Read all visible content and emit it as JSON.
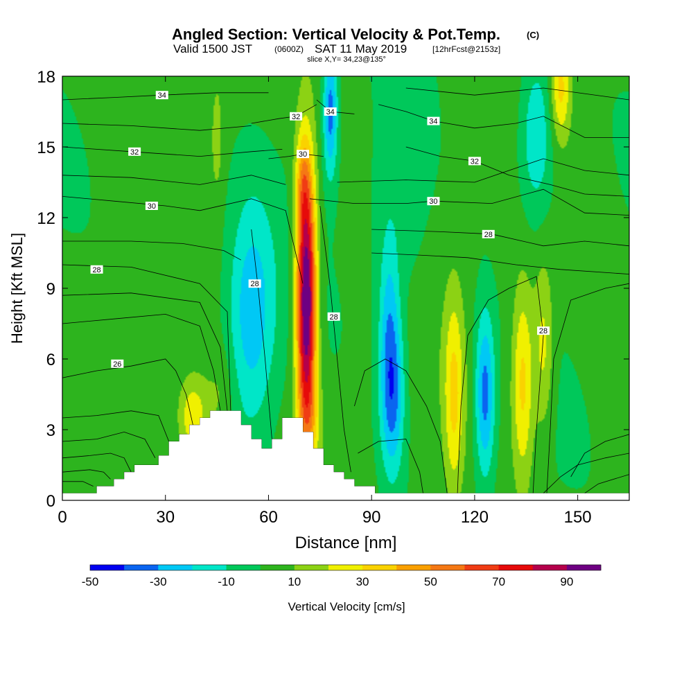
{
  "chart_data": {
    "type": "heatmap",
    "title": "Angled Section: Vertical Velocity & Pot.Temp.",
    "title_suffix": "(C)",
    "subtitle_main": "Valid 1500 JST",
    "subtitle_utc": "(0600Z)",
    "subtitle_date": "SAT 11 May 2019",
    "subtitle_fcst": "[12hrFcst@2153z]",
    "slice": "slice X,Y= 34,23@135°",
    "xlabel": "Distance [nm]",
    "ylabel": "Height [Kft MSL]",
    "xlim": [
      0,
      165
    ],
    "ylim": [
      0,
      18
    ],
    "xticks": [
      0,
      30,
      60,
      90,
      120,
      150
    ],
    "yticks": [
      0,
      3,
      6,
      9,
      12,
      15,
      18
    ],
    "colorbar": {
      "label": "Vertical Velocity [cm/s]",
      "ticks": [
        -50,
        -30,
        -10,
        10,
        30,
        50,
        70,
        90
      ],
      "levels": [
        -50,
        -40,
        -30,
        -20,
        -10,
        0,
        10,
        20,
        30,
        40,
        50,
        60,
        70,
        80,
        90,
        100
      ],
      "colors": [
        "#0000f0",
        "#0a64f0",
        "#00c8f5",
        "#00e6c8",
        "#00c85a",
        "#2db41e",
        "#8cd214",
        "#f0f000",
        "#fad200",
        "#faa000",
        "#f57814",
        "#f03c14",
        "#e60a0a",
        "#b4004b",
        "#6e0082"
      ]
    },
    "velocity_features": [
      {
        "x": 71,
        "y": 8.5,
        "sx": 2.0,
        "sy": 3.8,
        "w": 105,
        "note": "main updraft core"
      },
      {
        "x": 70,
        "y": 13.5,
        "sx": 1.6,
        "sy": 1.5,
        "w": 22
      },
      {
        "x": 72,
        "y": 3.5,
        "sx": 2.5,
        "sy": 1.5,
        "w": 18
      },
      {
        "x": 55,
        "y": 8.0,
        "sx": 5.0,
        "sy": 3.5,
        "w": -30
      },
      {
        "x": 46,
        "y": 4.5,
        "sx": 3.0,
        "sy": 1.5,
        "w": 10
      },
      {
        "x": 38,
        "y": 3.5,
        "sx": 3.0,
        "sy": 1.2,
        "w": 28
      },
      {
        "x": 78,
        "y": 16.5,
        "sx": 1.5,
        "sy": 2.0,
        "w": -38
      },
      {
        "x": 96,
        "y": 4.5,
        "sx": 2.5,
        "sy": 2.5,
        "w": -38
      },
      {
        "x": 95,
        "y": 8.0,
        "sx": 2.0,
        "sy": 2.5,
        "w": -18
      },
      {
        "x": 114,
        "y": 4.5,
        "sx": 2.0,
        "sy": 3.0,
        "w": 28
      },
      {
        "x": 123,
        "y": 4.5,
        "sx": 2.0,
        "sy": 2.5,
        "w": -38
      },
      {
        "x": 134,
        "y": 5.0,
        "sx": 2.2,
        "sy": 3.0,
        "w": 32
      },
      {
        "x": 140,
        "y": 6.5,
        "sx": 2.0,
        "sy": 2.5,
        "w": 22
      },
      {
        "x": 138,
        "y": 15.5,
        "sx": 3.5,
        "sy": 2.5,
        "w": -25
      },
      {
        "x": 145,
        "y": 17.5,
        "sx": 2.0,
        "sy": 1.5,
        "w": 30
      },
      {
        "x": 45,
        "y": 15.5,
        "sx": 1.0,
        "sy": 1.5,
        "w": 15
      },
      {
        "x": 98,
        "y": 12.0,
        "sx": 6.0,
        "sy": 3.0,
        "w": -10
      }
    ],
    "terrain": [
      [
        0,
        0.3
      ],
      [
        10,
        0.3
      ],
      [
        10,
        0.6
      ],
      [
        15,
        0.6
      ],
      [
        15,
        0.9
      ],
      [
        18,
        0.9
      ],
      [
        18,
        1.2
      ],
      [
        21,
        1.2
      ],
      [
        21,
        1.5
      ],
      [
        28,
        1.5
      ],
      [
        28,
        1.9
      ],
      [
        31,
        1.9
      ],
      [
        31,
        2.5
      ],
      [
        34,
        2.5
      ],
      [
        34,
        2.8
      ],
      [
        37,
        2.8
      ],
      [
        37,
        3.2
      ],
      [
        40,
        3.2
      ],
      [
        40,
        3.5
      ],
      [
        43,
        3.5
      ],
      [
        43,
        3.8
      ],
      [
        52,
        3.8
      ],
      [
        52,
        3.2
      ],
      [
        55,
        3.2
      ],
      [
        55,
        2.6
      ],
      [
        58,
        2.6
      ],
      [
        58,
        2.2
      ],
      [
        61,
        2.2
      ],
      [
        61,
        2.6
      ],
      [
        64,
        2.6
      ],
      [
        64,
        3.5
      ],
      [
        70,
        3.5
      ],
      [
        70,
        2.9
      ],
      [
        73,
        2.9
      ],
      [
        73,
        2.2
      ],
      [
        76,
        2.2
      ],
      [
        76,
        1.5
      ],
      [
        79,
        1.5
      ],
      [
        79,
        1.2
      ],
      [
        82,
        1.2
      ],
      [
        82,
        0.9
      ],
      [
        85,
        0.9
      ],
      [
        85,
        0.6
      ],
      [
        91,
        0.6
      ],
      [
        91,
        0.3
      ],
      [
        165,
        0.3
      ]
    ],
    "isotherms": [
      {
        "level": 26,
        "label_at": [
          16,
          5.8
        ],
        "pts": [
          [
            0,
            5.2
          ],
          [
            10,
            5.5
          ],
          [
            20,
            5.7
          ],
          [
            30,
            6.0
          ],
          [
            33,
            5.5
          ],
          [
            36,
            4.5
          ],
          [
            38,
            3.2
          ]
        ]
      },
      {
        "level": 28,
        "label_at": [
          10,
          9.8
        ],
        "pts": [
          [
            0,
            10.0
          ],
          [
            20,
            9.9
          ],
          [
            40,
            9.2
          ],
          [
            48,
            8.0
          ],
          [
            49,
            3.8
          ]
        ]
      },
      {
        "level": 28,
        "label_at": [
          56,
          9.2
        ],
        "pts": [
          [
            55,
            11.5
          ],
          [
            57,
            9.0
          ],
          [
            59,
            6.0
          ],
          [
            61,
            2.6
          ]
        ]
      },
      {
        "level": 28,
        "label_at": [
          79,
          7.8
        ],
        "pts": [
          [
            75,
            12.5
          ],
          [
            78,
            9.0
          ],
          [
            80,
            6.0
          ],
          [
            82,
            3.0
          ],
          [
            84,
            1.2
          ]
        ]
      },
      {
        "level": 28,
        "label_at": [
          124,
          11.3
        ],
        "pts": [
          [
            90,
            11.5
          ],
          [
            110,
            11.4
          ],
          [
            125,
            11.3
          ],
          [
            140,
            10.8
          ],
          [
            152,
            11.0
          ],
          [
            165,
            10.8
          ]
        ]
      },
      {
        "level": 28,
        "label_at": [
          140,
          7.2
        ],
        "pts": [
          [
            130,
            9.0
          ],
          [
            138,
            9.5
          ],
          [
            140,
            7.0
          ],
          [
            138,
            3.0
          ],
          [
            137,
            0.3
          ]
        ]
      },
      {
        "level": 30,
        "label_at": [
          26,
          12.5
        ],
        "pts": [
          [
            0,
            12.9
          ],
          [
            15,
            12.7
          ],
          [
            30,
            12.5
          ],
          [
            40,
            12.3
          ],
          [
            55,
            12.8
          ],
          [
            65,
            12.3
          ],
          [
            70,
            9.2
          ]
        ]
      },
      {
        "level": 30,
        "label_at": [
          108,
          12.7
        ],
        "pts": [
          [
            72,
            12.8
          ],
          [
            85,
            12.6
          ],
          [
            100,
            12.6
          ],
          [
            108,
            12.7
          ],
          [
            125,
            12.6
          ],
          [
            140,
            13.2
          ],
          [
            152,
            12.2
          ],
          [
            165,
            12.1
          ]
        ]
      },
      {
        "level": 30,
        "label_at": [
          70,
          14.7
        ],
        "pts": [
          [
            60,
            14.5
          ],
          [
            66,
            14.6
          ],
          [
            70,
            14.7
          ],
          [
            76,
            14.6
          ]
        ]
      },
      {
        "level": 32,
        "label_at": [
          21,
          14.8
        ],
        "pts": [
          [
            0,
            15.0
          ],
          [
            20,
            14.8
          ],
          [
            40,
            14.6
          ],
          [
            55,
            14.8
          ],
          [
            64,
            14.9
          ]
        ]
      },
      {
        "level": 32,
        "label_at": [
          68,
          16.3
        ],
        "pts": [
          [
            55,
            16.0
          ],
          [
            63,
            16.2
          ],
          [
            68,
            16.3
          ],
          [
            74,
            16.8
          ]
        ]
      },
      {
        "level": 32,
        "label_at": [
          120,
          14.4
        ],
        "pts": [
          [
            100,
            15.0
          ],
          [
            110,
            14.6
          ],
          [
            120,
            14.4
          ],
          [
            130,
            13.8
          ],
          [
            142,
            13.4
          ],
          [
            152,
            13.0
          ],
          [
            165,
            12.9
          ]
        ]
      },
      {
        "level": 34,
        "label_at": [
          29,
          17.2
        ],
        "pts": [
          [
            0,
            17.0
          ],
          [
            15,
            17.1
          ],
          [
            29,
            17.2
          ],
          [
            45,
            17.3
          ],
          [
            60,
            17.3
          ]
        ]
      },
      {
        "level": 34,
        "label_at": [
          78,
          16.5
        ],
        "pts": [
          [
            74,
            17.0
          ],
          [
            78,
            16.5
          ],
          [
            85,
            16.4
          ]
        ]
      },
      {
        "level": 34,
        "label_at": [
          108,
          16.1
        ],
        "pts": [
          [
            92,
            16.8
          ],
          [
            100,
            16.5
          ],
          [
            108,
            16.1
          ],
          [
            120,
            15.8
          ],
          [
            132,
            16.0
          ],
          [
            140,
            16.3
          ],
          [
            152,
            15.4
          ],
          [
            165,
            15.4
          ]
        ]
      }
    ],
    "extra_contours": [
      [
        [
          0,
          3.5
        ],
        [
          10,
          3.6
        ],
        [
          20,
          3.8
        ],
        [
          28,
          3.6
        ],
        [
          31,
          2.5
        ]
      ],
      [
        [
          0,
          2.5
        ],
        [
          10,
          2.6
        ],
        [
          18,
          2.9
        ],
        [
          24,
          2.6
        ],
        [
          27,
          1.8
        ]
      ],
      [
        [
          0,
          1.8
        ],
        [
          8,
          1.9
        ],
        [
          14,
          2.0
        ],
        [
          18,
          1.8
        ],
        [
          20,
          1.2
        ]
      ],
      [
        [
          0,
          1.2
        ],
        [
          8,
          1.3
        ],
        [
          12,
          1.2
        ],
        [
          14,
          0.9
        ]
      ],
      [
        [
          0,
          0.8
        ],
        [
          6,
          0.8
        ],
        [
          9,
          0.6
        ]
      ],
      [
        [
          0,
          7.5
        ],
        [
          15,
          7.7
        ],
        [
          30,
          7.9
        ],
        [
          40,
          7.4
        ],
        [
          44,
          5.5
        ],
        [
          46,
          3.8
        ]
      ],
      [
        [
          0,
          8.7
        ],
        [
          20,
          8.8
        ],
        [
          40,
          8.4
        ],
        [
          46,
          6.5
        ],
        [
          48,
          3.8
        ]
      ],
      [
        [
          0,
          11.0
        ],
        [
          20,
          11.0
        ],
        [
          35,
          10.9
        ],
        [
          47,
          10.6
        ],
        [
          52,
          10.2
        ]
      ],
      [
        [
          0,
          13.8
        ],
        [
          20,
          13.7
        ],
        [
          40,
          13.4
        ],
        [
          55,
          13.8
        ],
        [
          65,
          13.4
        ]
      ],
      [
        [
          0,
          16.0
        ],
        [
          20,
          15.9
        ],
        [
          40,
          15.7
        ],
        [
          55,
          15.9
        ]
      ],
      [
        [
          80,
          13.5
        ],
        [
          100,
          13.6
        ],
        [
          120,
          13.5
        ],
        [
          140,
          14.5
        ],
        [
          152,
          14.0
        ],
        [
          165,
          13.8
        ]
      ],
      [
        [
          90,
          10.5
        ],
        [
          105,
          10.4
        ],
        [
          118,
          10.3
        ],
        [
          132,
          10.0
        ],
        [
          145,
          9.8
        ],
        [
          165,
          9.6
        ]
      ],
      [
        [
          100,
          17.5
        ],
        [
          120,
          17.2
        ],
        [
          140,
          17.5
        ],
        [
          165,
          17.0
        ]
      ],
      [
        [
          85,
          4.0
        ],
        [
          88,
          5.5
        ],
        [
          94,
          6.0
        ],
        [
          100,
          5.5
        ],
        [
          106,
          4.0
        ],
        [
          110,
          2.5
        ],
        [
          112,
          0.3
        ]
      ],
      [
        [
          86,
          2.0
        ],
        [
          92,
          2.5
        ],
        [
          100,
          2.6
        ],
        [
          104,
          1.2
        ],
        [
          105,
          0.3
        ]
      ],
      [
        [
          115,
          0.3
        ],
        [
          116,
          4.0
        ],
        [
          118,
          7.0
        ],
        [
          124,
          8.5
        ],
        [
          130,
          9.0
        ]
      ],
      [
        [
          148,
          1.0
        ],
        [
          152,
          2.0
        ],
        [
          158,
          2.5
        ],
        [
          165,
          2.8
        ]
      ],
      [
        [
          140,
          0.3
        ],
        [
          145,
          1.0
        ],
        [
          150,
          1.5
        ],
        [
          158,
          1.8
        ],
        [
          165,
          2.0
        ]
      ],
      [
        [
          152,
          0.3
        ],
        [
          156,
          0.7
        ],
        [
          165,
          1.1
        ]
      ],
      [
        [
          141,
          0.3
        ],
        [
          142,
          3.0
        ],
        [
          143,
          6.0
        ],
        [
          148,
          8.5
        ],
        [
          158,
          9.0
        ],
        [
          165,
          9.2
        ]
      ]
    ]
  }
}
